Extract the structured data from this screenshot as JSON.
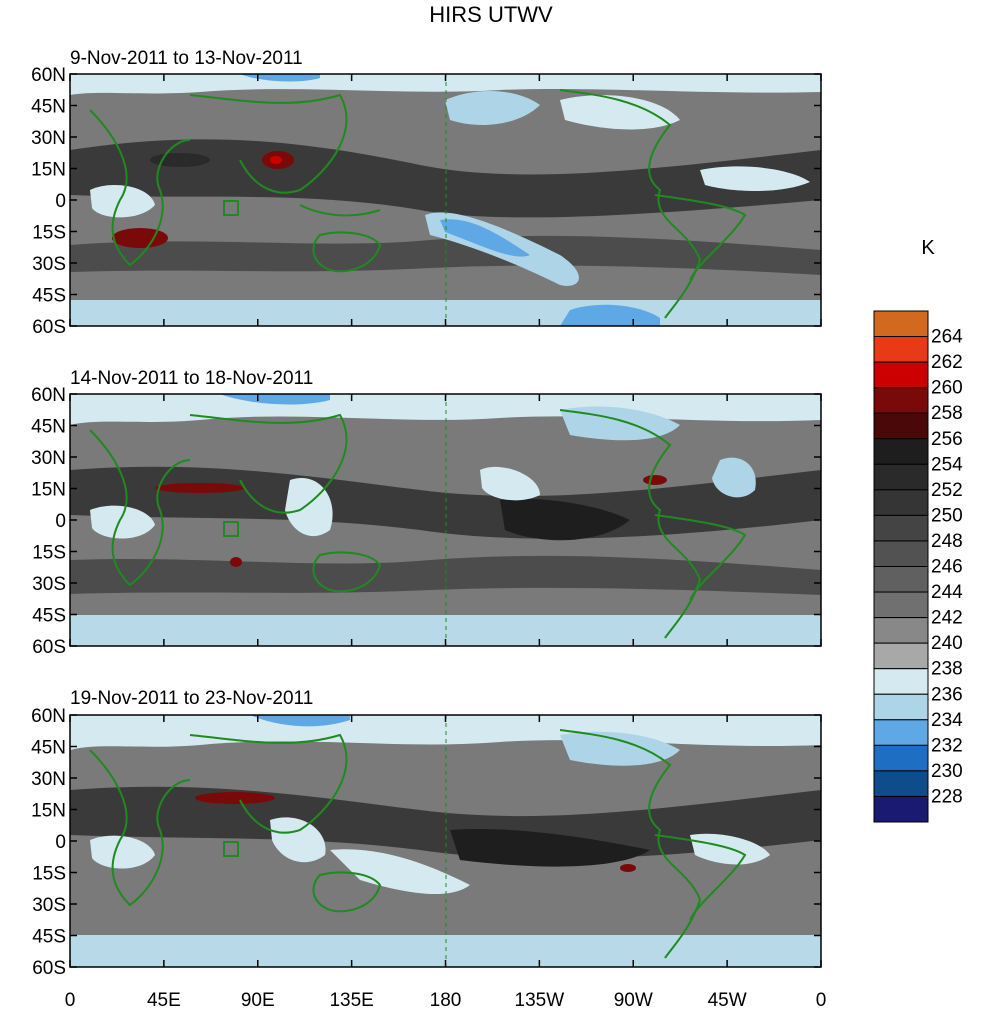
{
  "figure": {
    "title": "HIRS UTWV",
    "units": "K"
  },
  "panels": [
    {
      "period": "9-Nov-2011 to 13-Nov-2011"
    },
    {
      "period": "14-Nov-2011 to 18-Nov-2011"
    },
    {
      "period": "19-Nov-2011 to 23-Nov-2011"
    }
  ],
  "axes": {
    "lat_labels": [
      "60N",
      "45N",
      "30N",
      "15N",
      "0",
      "15S",
      "30S",
      "45S",
      "60S"
    ],
    "lon_labels": [
      "0",
      "45E",
      "90E",
      "135E",
      "180",
      "135W",
      "90W",
      "45W",
      "0"
    ]
  },
  "colorbar": {
    "levels": [
      "264",
      "262",
      "260",
      "258",
      "256",
      "254",
      "252",
      "250",
      "248",
      "246",
      "244",
      "242",
      "240",
      "238",
      "236",
      "234",
      "232",
      "230",
      "228"
    ],
    "colors": [
      "#d2691e",
      "#e83a16",
      "#cc0000",
      "#7a0a0a",
      "#4a0808",
      "#1e1e1e",
      "#2a2a2a",
      "#353535",
      "#444444",
      "#525252",
      "#606060",
      "#707070",
      "#888888",
      "#a8a8a8",
      "#d4eaf0",
      "#aed4e8",
      "#5fa8e6",
      "#1e6fc4",
      "#0e4c8c",
      "#1a1a72"
    ]
  },
  "colors": {
    "coastline": "#1f8a1f",
    "map_background": "#7a7a7a"
  }
}
